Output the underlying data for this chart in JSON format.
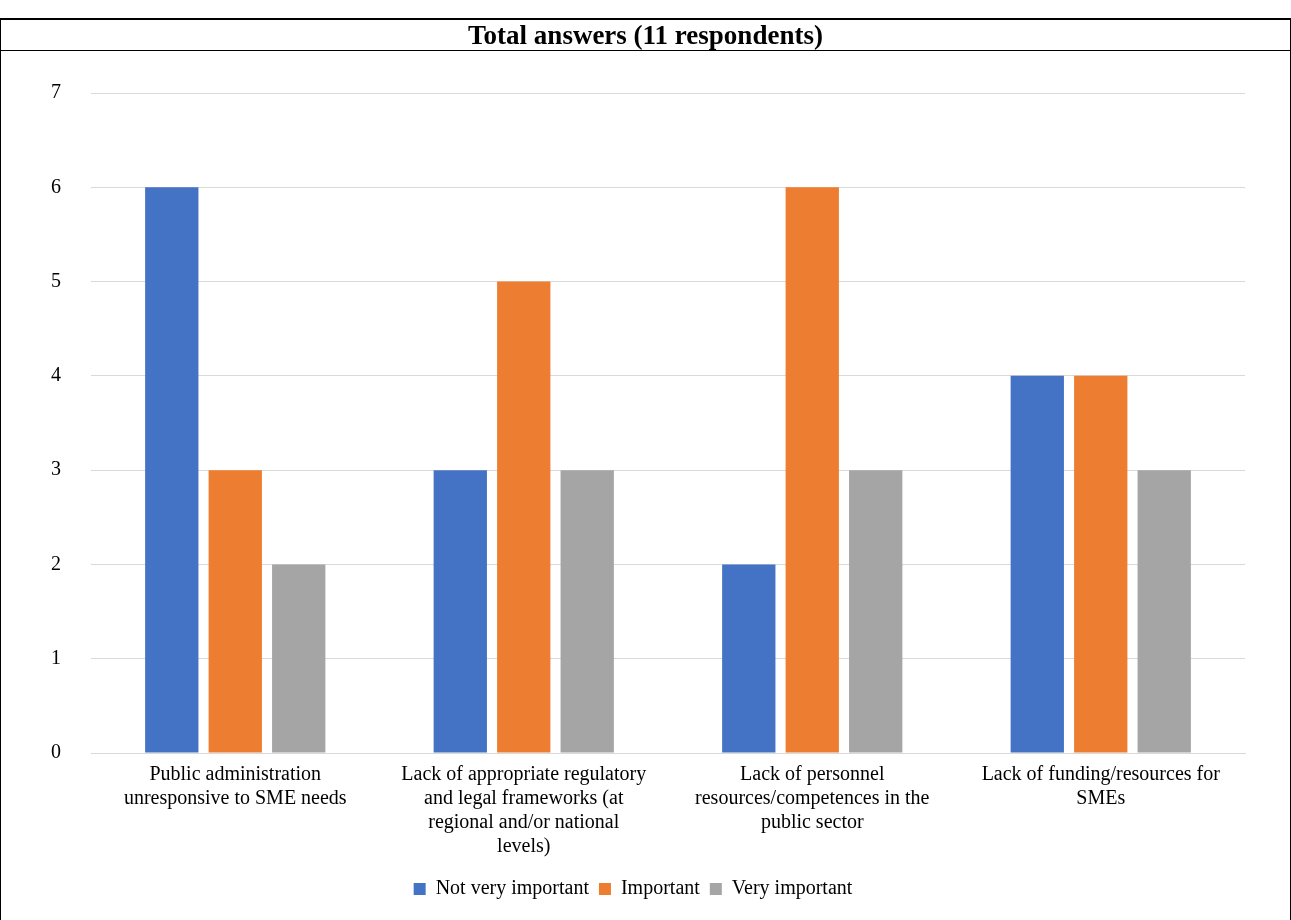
{
  "chart_data": {
    "type": "bar",
    "title": "Total answers (11 respondents)",
    "categories": [
      [
        "Public administration",
        "unresponsive to SME needs"
      ],
      [
        "Lack of appropriate regulatory",
        "and legal frameworks (at",
        "regional and/or national",
        "levels)"
      ],
      [
        "Lack of personnel",
        "resources/competences in the",
        "public sector"
      ],
      [
        "Lack of funding/resources for",
        "SMEs"
      ]
    ],
    "series": [
      {
        "name": "Not very important",
        "color": "#4472c4",
        "values": [
          6,
          3,
          2,
          4
        ]
      },
      {
        "name": "Important",
        "color": "#ed7d31",
        "values": [
          3,
          5,
          6,
          4
        ]
      },
      {
        "name": "Very important",
        "color": "#a5a5a5",
        "values": [
          2,
          3,
          3,
          3
        ]
      }
    ],
    "ylim": [
      0,
      7
    ],
    "yticks": [
      0,
      1,
      2,
      3,
      4,
      5,
      6,
      7
    ],
    "grid": "y",
    "legend": "bottom"
  }
}
